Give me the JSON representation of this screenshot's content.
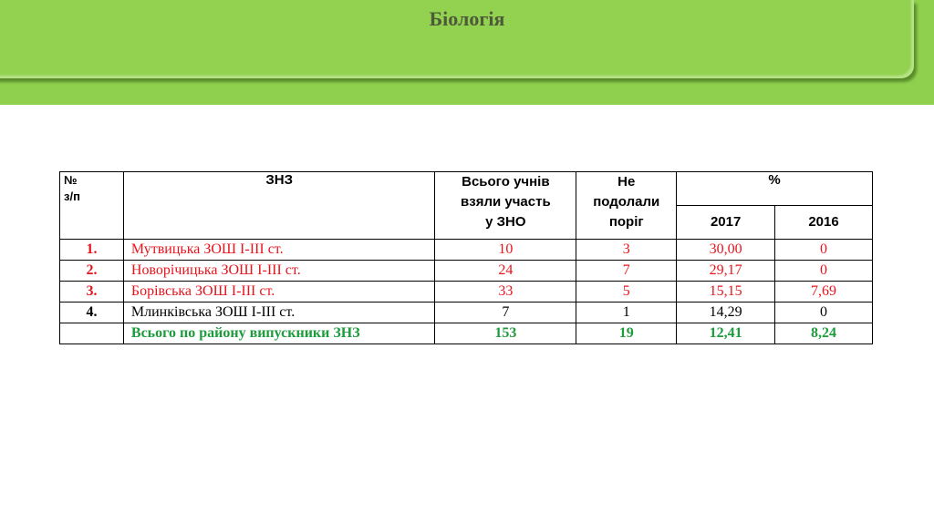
{
  "header": {
    "title": "Біологія"
  },
  "table": {
    "columns": [
      "№\nз/п",
      "ЗНЗ",
      "Всього учнів\nвзяли участь\nу ЗНО",
      "Не\nподолали\nпоріг",
      "%"
    ],
    "subcolumns": [
      "2017",
      "2016"
    ],
    "rows": [
      [
        "1.",
        "Мутвицька  ЗОШ І-ІІІ ст.",
        "10",
        "3",
        "30,00",
        "0"
      ],
      [
        "2.",
        "Новорічицька ЗОШ І-ІІІ ст.",
        "24",
        "7",
        "29,17",
        "0"
      ],
      [
        "3.",
        "Борівська ЗОШ І-ІІІ ст.",
        "33",
        "5",
        "15,15",
        "7,69"
      ],
      [
        "4.",
        "Млинківська ЗОШ І-ІІІ ст.",
        "7",
        "1",
        "14,29",
        "0"
      ]
    ],
    "total": {
      "label": "Всього по району випускники ЗНЗ",
      "cells": [
        "153",
        "19",
        "12,41",
        "8,24"
      ]
    }
  }
}
